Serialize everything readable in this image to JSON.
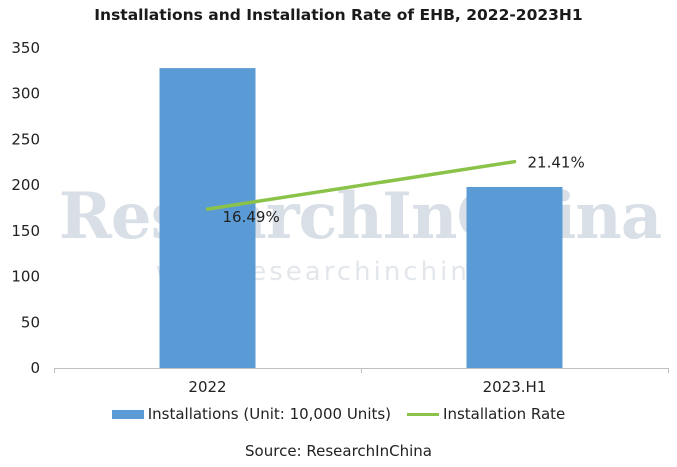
{
  "chart_data": {
    "type": "bar",
    "title": "Installations and Installation Rate of EHB, 2022-2023H1",
    "categories": [
      "2022",
      "2023.H1"
    ],
    "series": [
      {
        "name": "Installations (Unit: 10,000 Units)",
        "type": "bar",
        "values": [
          328,
          198
        ],
        "color": "#5b9bd5"
      },
      {
        "name": "Installation Rate",
        "type": "line",
        "values": [
          16.49,
          21.41
        ],
        "labels": [
          "16.49%",
          "21.41%"
        ],
        "color": "#8bc34a",
        "axis": "secondary"
      }
    ],
    "y_ticks": [
      "0",
      "50",
      "100",
      "150",
      "200",
      "250",
      "300",
      "350"
    ],
    "ylim": [
      0,
      350
    ],
    "legend": "bottom",
    "grid": false
  },
  "watermark": {
    "brand": "ResearchInChina",
    "url": "www.researchinchina.com"
  },
  "source": "Source: ResearchInChina"
}
